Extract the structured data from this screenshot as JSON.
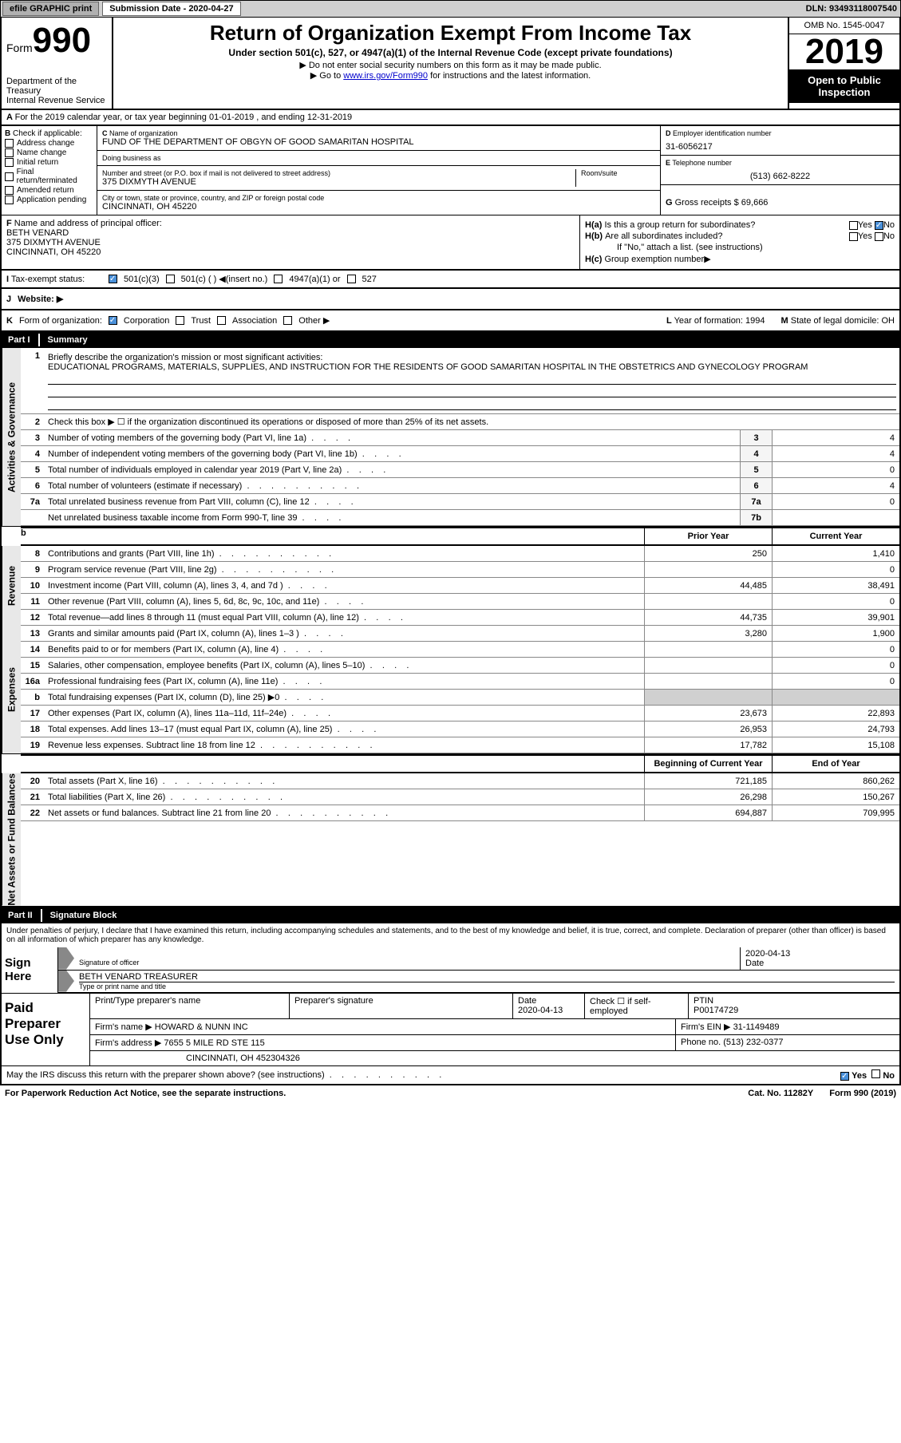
{
  "top": {
    "efile": "efile GRAPHIC print",
    "submission_label": "Submission Date - 2020-04-27",
    "dln": "DLN: 93493118007540"
  },
  "header": {
    "form_word": "Form",
    "form_num": "990",
    "dept": "Department of the Treasury",
    "irs": "Internal Revenue Service",
    "title": "Return of Organization Exempt From Income Tax",
    "subtitle": "Under section 501(c), 527, or 4947(a)(1) of the Internal Revenue Code (except private foundations)",
    "note1": "Do not enter social security numbers on this form as it may be made public.",
    "note2_pre": "Go to ",
    "note2_link": "www.irs.gov/Form990",
    "note2_post": " for instructions and the latest information.",
    "omb": "OMB No. 1545-0047",
    "year": "2019",
    "open": "Open to Public Inspection"
  },
  "A": {
    "text": "For the 2019 calendar year, or tax year beginning 01-01-2019    , and ending 12-31-2019"
  },
  "B": {
    "label": "Check if applicable:",
    "items": [
      "Address change",
      "Name change",
      "Initial return",
      "Final return/terminated",
      "Amended return",
      "Application pending"
    ]
  },
  "C": {
    "name_label": "Name of organization",
    "name": "FUND OF THE DEPARTMENT OF OBGYN OF GOOD SAMARITAN HOSPITAL",
    "dba_label": "Doing business as",
    "dba": "",
    "addr_label": "Number and street (or P.O. box if mail is not delivered to street address)",
    "room_label": "Room/suite",
    "addr": "375 DIXMYTH AVENUE",
    "city_label": "City or town, state or province, country, and ZIP or foreign postal code",
    "city": "CINCINNATI, OH  45220"
  },
  "D": {
    "label": "Employer identification number",
    "val": "31-6056217"
  },
  "E": {
    "label": "Telephone number",
    "val": "(513) 662-8222"
  },
  "G": {
    "label": "Gross receipts $",
    "val": "69,666"
  },
  "F": {
    "label": "Name and address of principal officer:",
    "name": "BETH VENARD",
    "addr1": "375 DIXMYTH AVENUE",
    "addr2": "CINCINNATI, OH  45220"
  },
  "H": {
    "a_label": "Is this a group return for subordinates?",
    "b_label": "Are all subordinates included?",
    "b_note": "If \"No,\" attach a list. (see instructions)",
    "c_label": "Group exemption number",
    "yes": "Yes",
    "no": "No"
  },
  "I": {
    "label": "Tax-exempt status:",
    "opts": [
      "501(c)(3)",
      "501(c) (  ) ◀(insert no.)",
      "4947(a)(1) or",
      "527"
    ]
  },
  "J": {
    "label": "Website: ▶"
  },
  "K": {
    "label": "Form of organization:",
    "opts": [
      "Corporation",
      "Trust",
      "Association",
      "Other ▶"
    ]
  },
  "L": {
    "label": "Year of formation:",
    "val": "1994"
  },
  "M": {
    "label": "State of legal domicile:",
    "val": "OH"
  },
  "part1": {
    "part": "Part I",
    "title": "Summary"
  },
  "summary": {
    "q1": "Briefly describe the organization's mission or most significant activities:",
    "mission": "EDUCATIONAL PROGRAMS, MATERIALS, SUPPLIES, AND INSTRUCTION FOR THE RESIDENTS OF GOOD SAMARITAN HOSPITAL IN THE OBSTETRICS AND GYNECOLOGY PROGRAM",
    "q2": "Check this box ▶ ☐  if the organization discontinued its operations or disposed of more than 25% of its net assets.",
    "rows_ag": [
      {
        "n": "3",
        "d": "Number of voting members of the governing body (Part VI, line 1a)",
        "c": "3",
        "v": "4"
      },
      {
        "n": "4",
        "d": "Number of independent voting members of the governing body (Part VI, line 1b)",
        "c": "4",
        "v": "4"
      },
      {
        "n": "5",
        "d": "Total number of individuals employed in calendar year 2019 (Part V, line 2a)",
        "c": "5",
        "v": "0"
      },
      {
        "n": "6",
        "d": "Total number of volunteers (estimate if necessary)",
        "c": "6",
        "v": "4"
      },
      {
        "n": "7a",
        "d": "Total unrelated business revenue from Part VIII, column (C), line 12",
        "c": "7a",
        "v": "0"
      },
      {
        "n": "",
        "d": "Net unrelated business taxable income from Form 990-T, line 39",
        "c": "7b",
        "v": ""
      }
    ],
    "prior": "Prior Year",
    "current": "Current Year",
    "revenue": [
      {
        "n": "8",
        "d": "Contributions and grants (Part VIII, line 1h)",
        "p": "250",
        "c": "1,410"
      },
      {
        "n": "9",
        "d": "Program service revenue (Part VIII, line 2g)",
        "p": "",
        "c": "0"
      },
      {
        "n": "10",
        "d": "Investment income (Part VIII, column (A), lines 3, 4, and 7d )",
        "p": "44,485",
        "c": "38,491"
      },
      {
        "n": "11",
        "d": "Other revenue (Part VIII, column (A), lines 5, 6d, 8c, 9c, 10c, and 11e)",
        "p": "",
        "c": "0"
      },
      {
        "n": "12",
        "d": "Total revenue—add lines 8 through 11 (must equal Part VIII, column (A), line 12)",
        "p": "44,735",
        "c": "39,901"
      }
    ],
    "expenses": [
      {
        "n": "13",
        "d": "Grants and similar amounts paid (Part IX, column (A), lines 1–3 )",
        "p": "3,280",
        "c": "1,900"
      },
      {
        "n": "14",
        "d": "Benefits paid to or for members (Part IX, column (A), line 4)",
        "p": "",
        "c": "0"
      },
      {
        "n": "15",
        "d": "Salaries, other compensation, employee benefits (Part IX, column (A), lines 5–10)",
        "p": "",
        "c": "0"
      },
      {
        "n": "16a",
        "d": "Professional fundraising fees (Part IX, column (A), line 11e)",
        "p": "",
        "c": "0"
      },
      {
        "n": "b",
        "d": "Total fundraising expenses (Part IX, column (D), line 25) ▶0",
        "p": "gray",
        "c": "gray"
      },
      {
        "n": "17",
        "d": "Other expenses (Part IX, column (A), lines 11a–11d, 11f–24e)",
        "p": "23,673",
        "c": "22,893"
      },
      {
        "n": "18",
        "d": "Total expenses. Add lines 13–17 (must equal Part IX, column (A), line 25)",
        "p": "26,953",
        "c": "24,793"
      },
      {
        "n": "19",
        "d": "Revenue less expenses. Subtract line 18 from line 12",
        "p": "17,782",
        "c": "15,108"
      }
    ],
    "begin": "Beginning of Current Year",
    "end": "End of Year",
    "netassets": [
      {
        "n": "20",
        "d": "Total assets (Part X, line 16)",
        "p": "721,185",
        "c": "860,262"
      },
      {
        "n": "21",
        "d": "Total liabilities (Part X, line 26)",
        "p": "26,298",
        "c": "150,267"
      },
      {
        "n": "22",
        "d": "Net assets or fund balances. Subtract line 21 from line 20",
        "p": "694,887",
        "c": "709,995"
      }
    ]
  },
  "sidelabels": {
    "ag": "Activities & Governance",
    "rev": "Revenue",
    "exp": "Expenses",
    "net": "Net Assets or Fund Balances"
  },
  "part2": {
    "part": "Part II",
    "title": "Signature Block"
  },
  "sig": {
    "penalties": "Under penalties of perjury, I declare that I have examined this return, including accompanying schedules and statements, and to the best of my knowledge and belief, it is true, correct, and complete. Declaration of preparer (other than officer) is based on all information of which preparer has any knowledge.",
    "sign_here": "Sign Here",
    "sig_officer": "Signature of officer",
    "date": "Date",
    "date_val": "2020-04-13",
    "officer_name": "BETH VENARD TREASURER",
    "type_name": "Type or print name and title",
    "paid": "Paid Preparer Use Only",
    "print_name": "Print/Type preparer's name",
    "prep_sig": "Preparer's signature",
    "prep_date": "2020-04-13",
    "check_self": "Check ☐ if self-employed",
    "ptin_label": "PTIN",
    "ptin": "P00174729",
    "firm_name_label": "Firm's name    ▶",
    "firm_name": "HOWARD & NUNN INC",
    "firm_ein_label": "Firm's EIN ▶",
    "firm_ein": "31-1149489",
    "firm_addr_label": "Firm's address ▶",
    "firm_addr": "7655 5 MILE RD STE 115",
    "firm_city": "CINCINNATI, OH  452304326",
    "phone_label": "Phone no.",
    "phone": "(513) 232-0377",
    "discuss": "May the IRS discuss this return with the preparer shown above? (see instructions)"
  },
  "footer": {
    "paperwork": "For Paperwork Reduction Act Notice, see the separate instructions.",
    "cat": "Cat. No. 11282Y",
    "form": "Form 990 (2019)"
  }
}
